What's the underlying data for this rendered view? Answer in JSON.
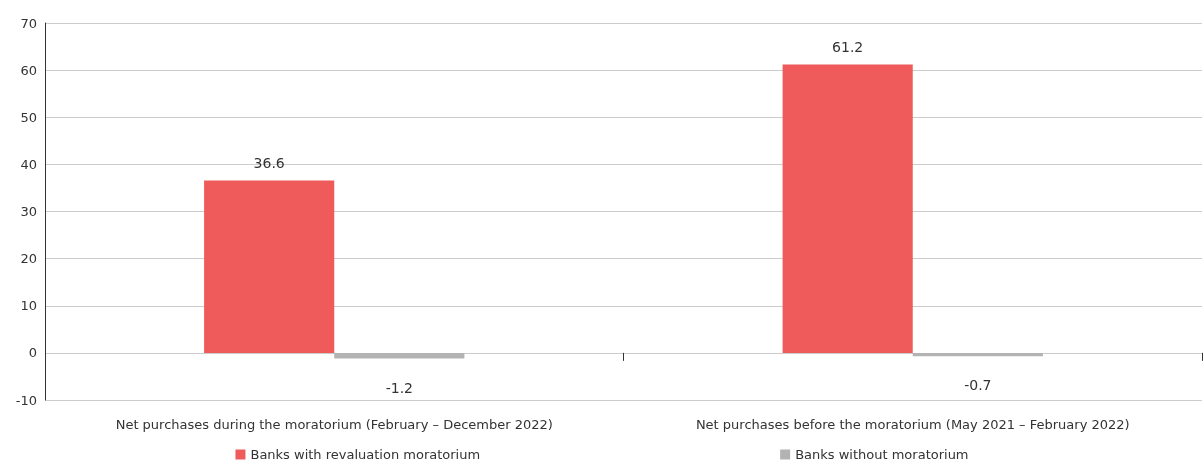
{
  "chart_data": {
    "type": "bar",
    "categories": [
      "Net purchases during the moratorium (February – December 2022)",
      "Net purchases before the moratorium (May 2021 – February 2022)"
    ],
    "series": [
      {
        "name": "Banks with revaluation moratorium",
        "color": "#ef5b5b",
        "values": [
          36.6,
          61.2
        ]
      },
      {
        "name": "Banks without moratorium",
        "color": "#b3b3b3",
        "values": [
          -1.2,
          -0.7
        ]
      }
    ],
    "ylim": [
      -10,
      70
    ],
    "yticks": [
      -10,
      0,
      10,
      20,
      30,
      40,
      50,
      60,
      70
    ],
    "grid": "y",
    "legend": "bottom",
    "data_labels": true
  }
}
